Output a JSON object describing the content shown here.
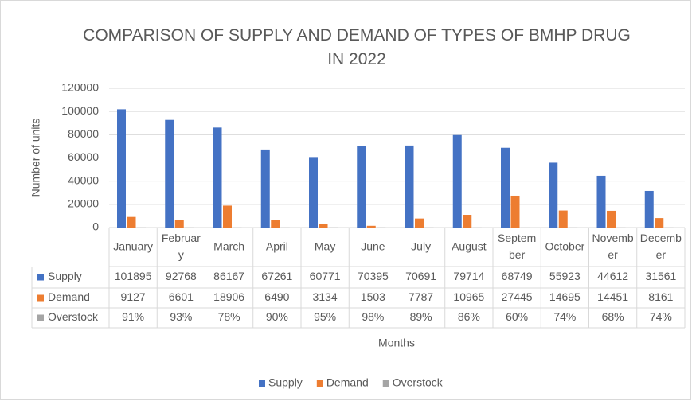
{
  "chart_data": {
    "type": "bar",
    "title": "COMPARISON OF SUPPLY AND DEMAND OF TYPES OF BMHP DRUG IN 2022",
    "x_label": "Months",
    "y_label": "Number of units",
    "categories": [
      "January",
      "February",
      "March",
      "April",
      "May",
      "June",
      "July",
      "August",
      "September",
      "October",
      "November",
      "December"
    ],
    "series": [
      {
        "name": "Supply",
        "color": "#4472c4",
        "values": [
          101895,
          92768,
          86167,
          67261,
          60771,
          70395,
          70691,
          79714,
          68749,
          55923,
          44612,
          31561
        ]
      },
      {
        "name": "Demand",
        "color": "#ed7d31",
        "values": [
          9127,
          6601,
          18906,
          6490,
          3134,
          1503,
          7787,
          10965,
          27445,
          14695,
          14451,
          8161
        ]
      },
      {
        "name": "Overstock",
        "color": "#a5a5a5",
        "values": [
          91,
          93,
          78,
          90,
          95,
          98,
          89,
          86,
          60,
          74,
          68,
          74
        ],
        "value_labels": [
          "91%",
          "93%",
          "78%",
          "90%",
          "95%",
          "98%",
          "89%",
          "86%",
          "60%",
          "74%",
          "68%",
          "74%"
        ]
      }
    ],
    "ylim": [
      0,
      120000
    ],
    "yticks": [
      0,
      20000,
      40000,
      60000,
      80000,
      100000,
      120000
    ],
    "grid": true,
    "legend": "bottom"
  }
}
